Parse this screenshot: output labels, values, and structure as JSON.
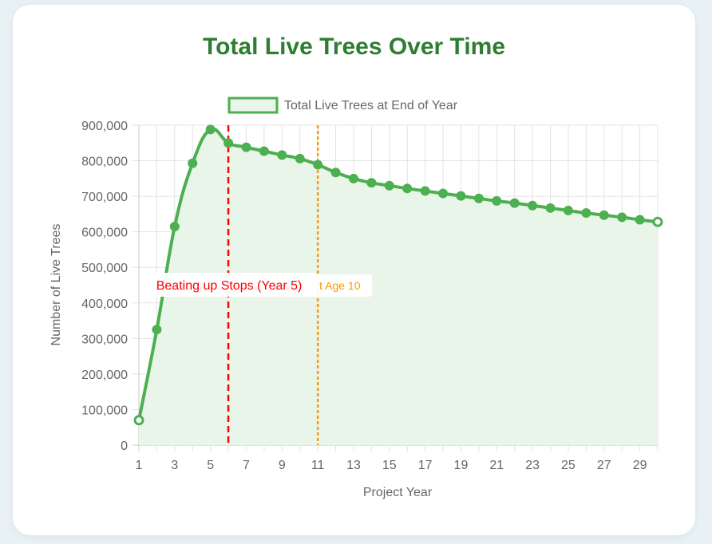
{
  "page": {
    "title": "Total Live Trees Over Time"
  },
  "chart_data": {
    "type": "line",
    "title": "Total Live Trees Over Time",
    "xlabel": "Project Year",
    "ylabel": "Number of Live Trees",
    "legend_position": "top",
    "x_range": [
      1,
      30
    ],
    "ylim": [
      0,
      900000
    ],
    "y_ticks": [
      "0",
      "100,000",
      "200,000",
      "300,000",
      "400,000",
      "500,000",
      "600,000",
      "700,000",
      "800,000",
      "900,000"
    ],
    "x_ticks": [
      "1",
      "3",
      "5",
      "7",
      "9",
      "11",
      "13",
      "15",
      "17",
      "19",
      "21",
      "23",
      "25",
      "27",
      "29"
    ],
    "grid": true,
    "series": [
      {
        "name": "Total Live Trees at End of Year",
        "color": "#4caf50",
        "fill": "#eaf5ea",
        "x": [
          1,
          2,
          3,
          4,
          5,
          6,
          7,
          8,
          9,
          10,
          11,
          12,
          13,
          14,
          15,
          16,
          17,
          18,
          19,
          20,
          21,
          22,
          23,
          24,
          25,
          26,
          27,
          28,
          29,
          30
        ],
        "values": [
          70000,
          325000,
          615000,
          793000,
          888000,
          850000,
          838000,
          827000,
          816000,
          806000,
          789000,
          767000,
          750000,
          738000,
          730000,
          722000,
          715000,
          708000,
          701000,
          694000,
          687000,
          681000,
          674000,
          667000,
          660000,
          653000,
          647000,
          641000,
          634000,
          628000
        ]
      }
    ],
    "annotations": [
      {
        "x": 6,
        "label": "Beating up Stops (Year 5)",
        "color": "#ff0000",
        "style": "dashed"
      },
      {
        "x": 11,
        "label": "t Age 10",
        "color": "#ff9800",
        "style": "dotted"
      }
    ]
  }
}
